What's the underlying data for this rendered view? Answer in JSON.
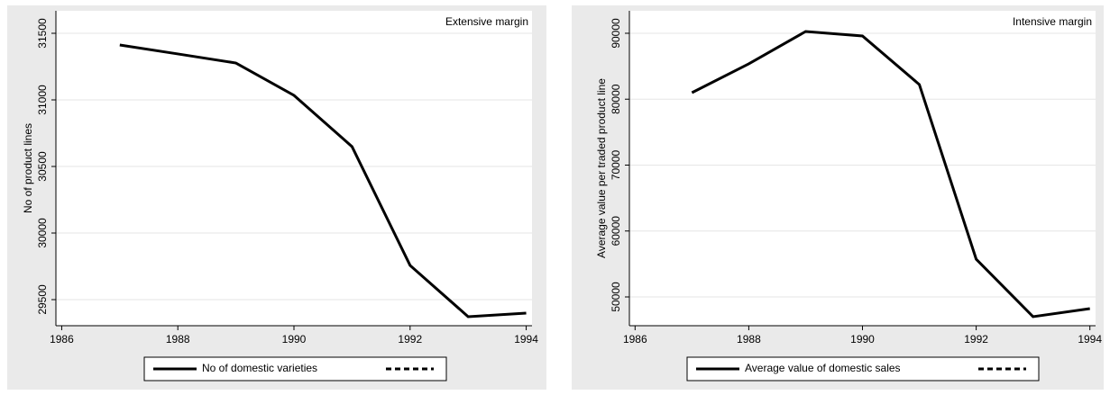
{
  "chart_data": [
    {
      "type": "line",
      "annotation": "Extensive margin",
      "y_label": "No of product lines",
      "x": [
        1987,
        1988,
        1989,
        1990,
        1991,
        1992,
        1993,
        1994
      ],
      "series": [
        {
          "name": "No of domestic varieties",
          "color": "#000000",
          "values": [
            31412,
            31345,
            31277,
            31034,
            30649,
            29757,
            29372,
            29399
          ]
        }
      ],
      "xlim": [
        1985.9,
        1994.1
      ],
      "xticks": [
        1986,
        1988,
        1990,
        1992,
        1994
      ],
      "ylim": [
        29304,
        31669
      ],
      "yticks": [
        29500,
        30000,
        30500,
        31000,
        31500
      ],
      "grid": true
    },
    {
      "type": "line",
      "annotation": "Intensive margin",
      "y_label": "Average value per traded product line",
      "x": [
        1987,
        1988,
        1989,
        1990,
        1991,
        1992,
        1993,
        1994
      ],
      "series": [
        {
          "name": "Average value of domestic sales",
          "color": "#000000",
          "values": [
            80990,
            85360,
            90270,
            89590,
            82220,
            55730,
            47000,
            48230
          ]
        }
      ],
      "xlim": [
        1985.9,
        1994.1
      ],
      "xticks": [
        1986,
        1988,
        1990,
        1992,
        1994
      ],
      "ylim": [
        45630,
        93410
      ],
      "yticks": [
        50000,
        60000,
        70000,
        80000,
        90000
      ],
      "grid": true
    }
  ]
}
